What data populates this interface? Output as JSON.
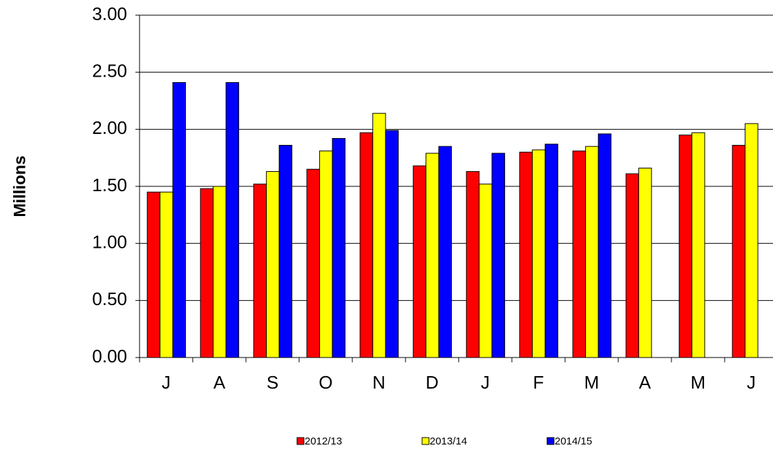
{
  "chart_data": {
    "type": "bar",
    "y_label": "Millions",
    "categories": [
      "J",
      "A",
      "S",
      "O",
      "N",
      "D",
      "J",
      "F",
      "M",
      "A",
      "M",
      "J"
    ],
    "series": [
      {
        "name": "2012/13",
        "color": "#ff0000",
        "values": [
          1.45,
          1.48,
          1.52,
          1.65,
          1.97,
          1.68,
          1.63,
          1.8,
          1.81,
          1.61,
          1.95,
          1.86
        ]
      },
      {
        "name": "2013/14",
        "color": "#ffff00",
        "values": [
          1.45,
          1.5,
          1.63,
          1.81,
          2.14,
          1.79,
          1.52,
          1.82,
          1.85,
          1.66,
          1.97,
          2.05
        ]
      },
      {
        "name": "2014/15",
        "color": "#0000ff",
        "values": [
          2.41,
          2.41,
          1.86,
          1.92,
          1.99,
          1.85,
          1.79,
          1.87,
          1.96,
          null,
          null,
          null
        ]
      }
    ],
    "ylim": [
      0,
      3
    ],
    "yticks": [
      {
        "value": 0,
        "label": "0.00"
      },
      {
        "value": 0.5,
        "label": "0.50"
      },
      {
        "value": 1,
        "label": "1.00"
      },
      {
        "value": 1.5,
        "label": "1.50"
      },
      {
        "value": 2,
        "label": "2.00"
      },
      {
        "value": 2.5,
        "label": "2.50"
      },
      {
        "value": 3,
        "label": "3.00"
      }
    ],
    "grid": true
  }
}
